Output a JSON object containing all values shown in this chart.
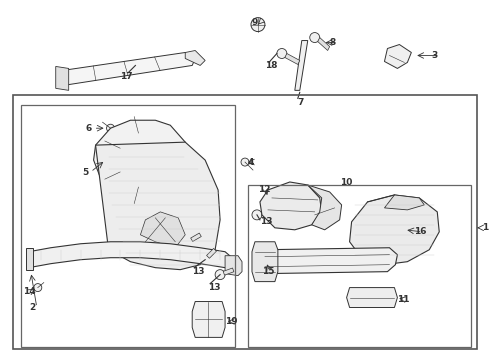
{
  "bg_color": "#ffffff",
  "line_color": "#333333",
  "fig_width": 4.9,
  "fig_height": 3.6,
  "dpi": 100,
  "label_fontsize": 6.5
}
